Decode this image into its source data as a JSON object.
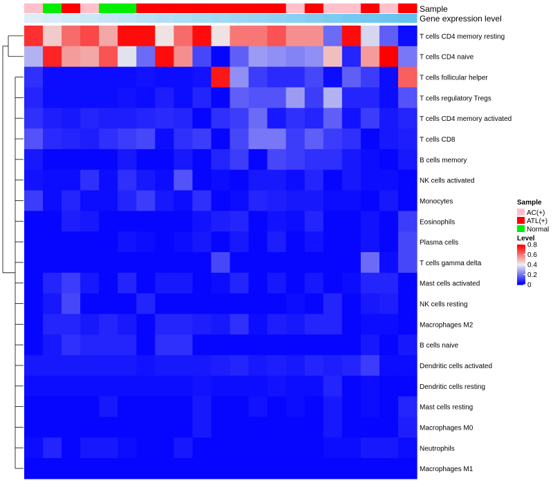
{
  "chart_data": {
    "type": "heatmap",
    "annotation_labels": {
      "sample": "Sample",
      "expression": "Gene expression level"
    },
    "sample_groups": [
      "AC(+)",
      "Normal",
      "ATL(+)",
      "AC(+)",
      "Normal",
      "Normal",
      "ATL(+)",
      "ATL(+)",
      "ATL(+)",
      "ATL(+)",
      "ATL(+)",
      "ATL(+)",
      "ATL(+)",
      "ATL(+)",
      "AC(+)",
      "ATL(+)",
      "AC(+)",
      "AC(+)",
      "ATL(+)",
      "AC(+)",
      "ATL(+)"
    ],
    "expression_levels": [
      0.0,
      0.02,
      0.04,
      0.06,
      0.08,
      0.1,
      0.12,
      0.14,
      0.16,
      0.18,
      0.2,
      0.22,
      0.24,
      0.26,
      0.28,
      0.3,
      0.32,
      0.34,
      0.36,
      0.38,
      0.4
    ],
    "rows": [
      "T cells CD4 memory resting",
      "T cells CD4 naive",
      "T cells follicular helper",
      "T cells regulatory  Tregs",
      "T cells CD4 memory activated",
      "T cells CD8",
      "B cells memory",
      "NK cells activated",
      "Monocytes",
      "Eosinophils",
      "Plasma cells",
      "T cells gamma delta",
      "Mast cells activated",
      "NK cells resting",
      "Macrophages M2",
      "B cells naive",
      "Dendritic cells activated",
      "Dendritic cells resting",
      "Mast cells resting",
      "Macrophages M0",
      "Neutrophils",
      "Macrophages M1"
    ],
    "values": [
      [
        0.72,
        0.46,
        0.62,
        0.68,
        0.52,
        0.78,
        0.78,
        0.42,
        0.62,
        0.78,
        0.42,
        0.6,
        0.6,
        0.66,
        0.56,
        0.56,
        0.18,
        0.78,
        0.36,
        0.16,
        0.02
      ],
      [
        0.3,
        0.74,
        0.54,
        0.52,
        0.66,
        0.38,
        0.18,
        0.78,
        0.56,
        0.12,
        0.01,
        0.16,
        0.26,
        0.24,
        0.22,
        0.24,
        0.48,
        0.06,
        0.54,
        0.8,
        0.2
      ],
      [
        0.08,
        0.02,
        0.02,
        0.02,
        0.02,
        0.02,
        0.03,
        0.02,
        0.02,
        0.03,
        0.76,
        0.24,
        0.1,
        0.07,
        0.07,
        0.12,
        0.02,
        0.16,
        0.1,
        0.02,
        0.64
      ],
      [
        0.06,
        0.02,
        0.02,
        0.02,
        0.02,
        0.03,
        0.02,
        0.05,
        0.02,
        0.06,
        0.01,
        0.16,
        0.14,
        0.14,
        0.26,
        0.1,
        0.3,
        0.06,
        0.06,
        0.02,
        0.14
      ],
      [
        0.08,
        0.05,
        0.04,
        0.06,
        0.05,
        0.05,
        0.06,
        0.07,
        0.06,
        0.01,
        0.08,
        0.1,
        0.18,
        0.04,
        0.08,
        0.06,
        0.16,
        0.03,
        0.1,
        0.04,
        0.06
      ],
      [
        0.14,
        0.07,
        0.06,
        0.05,
        0.08,
        0.1,
        0.12,
        0.02,
        0.08,
        0.1,
        0.01,
        0.12,
        0.2,
        0.2,
        0.1,
        0.16,
        0.1,
        0.08,
        0.01,
        0.04,
        0.05
      ],
      [
        0.04,
        0.01,
        0.01,
        0.01,
        0.01,
        0.04,
        0.01,
        0.01,
        0.04,
        0.01,
        0.06,
        0.1,
        0.01,
        0.12,
        0.1,
        0.08,
        0.08,
        0.04,
        0.02,
        0.01,
        0.04
      ],
      [
        0.03,
        0.02,
        0.02,
        0.08,
        0.02,
        0.08,
        0.04,
        0.02,
        0.14,
        0.01,
        0.02,
        0.01,
        0.04,
        0.04,
        0.02,
        0.06,
        0.01,
        0.04,
        0.02,
        0.02,
        0.01
      ],
      [
        0.1,
        0.02,
        0.06,
        0.02,
        0.02,
        0.06,
        0.1,
        0.04,
        0.02,
        0.08,
        0.01,
        0.02,
        0.06,
        0.05,
        0.04,
        0.04,
        0.02,
        0.02,
        0.01,
        0.04,
        0.01
      ],
      [
        0.01,
        0.01,
        0.05,
        0.04,
        0.01,
        0.01,
        0.01,
        0.01,
        0.01,
        0.03,
        0.05,
        0.06,
        0.01,
        0.03,
        0.02,
        0.06,
        0.01,
        0.01,
        0.03,
        0.01,
        0.1
      ],
      [
        0.01,
        0.01,
        0.01,
        0.01,
        0.01,
        0.03,
        0.02,
        0.01,
        0.02,
        0.04,
        0.01,
        0.04,
        0.01,
        0.05,
        0.01,
        0.03,
        0.01,
        0.01,
        0.03,
        0.01,
        0.12
      ],
      [
        0.01,
        0.01,
        0.01,
        0.01,
        0.01,
        0.01,
        0.01,
        0.01,
        0.01,
        0.01,
        0.12,
        0.01,
        0.01,
        0.01,
        0.01,
        0.01,
        0.01,
        0.01,
        0.18,
        0.02,
        0.12
      ],
      [
        0.01,
        0.06,
        0.1,
        0.04,
        0.01,
        0.06,
        0.01,
        0.04,
        0.04,
        0.01,
        0.02,
        0.06,
        0.01,
        0.04,
        0.01,
        0.04,
        0.01,
        0.02,
        0.06,
        0.06,
        0.01
      ],
      [
        0.01,
        0.04,
        0.12,
        0.01,
        0.01,
        0.01,
        0.06,
        0.01,
        0.01,
        0.01,
        0.01,
        0.01,
        0.01,
        0.01,
        0.02,
        0.01,
        0.06,
        0.01,
        0.04,
        0.05,
        0.01
      ],
      [
        0.01,
        0.06,
        0.06,
        0.04,
        0.06,
        0.04,
        0.01,
        0.06,
        0.06,
        0.05,
        0.04,
        0.08,
        0.02,
        0.05,
        0.04,
        0.06,
        0.06,
        0.01,
        0.02,
        0.02,
        0.01
      ],
      [
        0.01,
        0.04,
        0.08,
        0.06,
        0.06,
        0.06,
        0.01,
        0.08,
        0.08,
        0.01,
        0.01,
        0.01,
        0.01,
        0.01,
        0.01,
        0.01,
        0.01,
        0.01,
        0.04,
        0.01,
        0.04
      ],
      [
        0.04,
        0.04,
        0.04,
        0.04,
        0.04,
        0.04,
        0.03,
        0.04,
        0.04,
        0.04,
        0.05,
        0.06,
        0.04,
        0.05,
        0.04,
        0.06,
        0.05,
        0.06,
        0.1,
        0.02,
        0.02
      ],
      [
        0.02,
        0.02,
        0.02,
        0.02,
        0.02,
        0.02,
        0.02,
        0.02,
        0.02,
        0.03,
        0.02,
        0.02,
        0.02,
        0.03,
        0.02,
        0.02,
        0.06,
        0.01,
        0.02,
        0.01,
        0.01
      ],
      [
        0.01,
        0.01,
        0.01,
        0.01,
        0.04,
        0.01,
        0.01,
        0.01,
        0.01,
        0.04,
        0.01,
        0.01,
        0.03,
        0.01,
        0.02,
        0.01,
        0.04,
        0.01,
        0.02,
        0.01,
        0.06
      ],
      [
        0.01,
        0.01,
        0.01,
        0.01,
        0.01,
        0.01,
        0.01,
        0.01,
        0.01,
        0.04,
        0.01,
        0.01,
        0.01,
        0.01,
        0.01,
        0.01,
        0.04,
        0.01,
        0.01,
        0.01,
        0.05
      ],
      [
        0.02,
        0.06,
        0.01,
        0.04,
        0.04,
        0.02,
        0.01,
        0.01,
        0.04,
        0.01,
        0.01,
        0.01,
        0.01,
        0.01,
        0.01,
        0.01,
        0.02,
        0.02,
        0.04,
        0.04,
        0.02
      ],
      [
        0.01,
        0.01,
        0.01,
        0.01,
        0.01,
        0.01,
        0.01,
        0.01,
        0.01,
        0.01,
        0.01,
        0.01,
        0.01,
        0.01,
        0.01,
        0.01,
        0.01,
        0.01,
        0.01,
        0.01,
        0.01
      ]
    ],
    "legend_sample": {
      "title": "Sample",
      "entries": [
        {
          "label": "AC(+)",
          "color": "#ffc0cb"
        },
        {
          "label": "ATL(+)",
          "color": "#ff0000"
        },
        {
          "label": "Normal",
          "color": "#00ee00"
        }
      ]
    },
    "legend_level": {
      "title": "Level",
      "ticks": [
        "0.8",
        "0.6",
        "0.4",
        "0.2",
        "0"
      ],
      "tick_values": [
        0.8,
        0.6,
        0.4,
        0.2,
        0.0
      ],
      "range": [
        0,
        0.8
      ]
    },
    "colors": {
      "low": "#0000ff",
      "mid": "#eeeeee",
      "high": "#ff0000",
      "expr_low": "#ddeef8",
      "expr_high": "#63c3ee"
    }
  }
}
